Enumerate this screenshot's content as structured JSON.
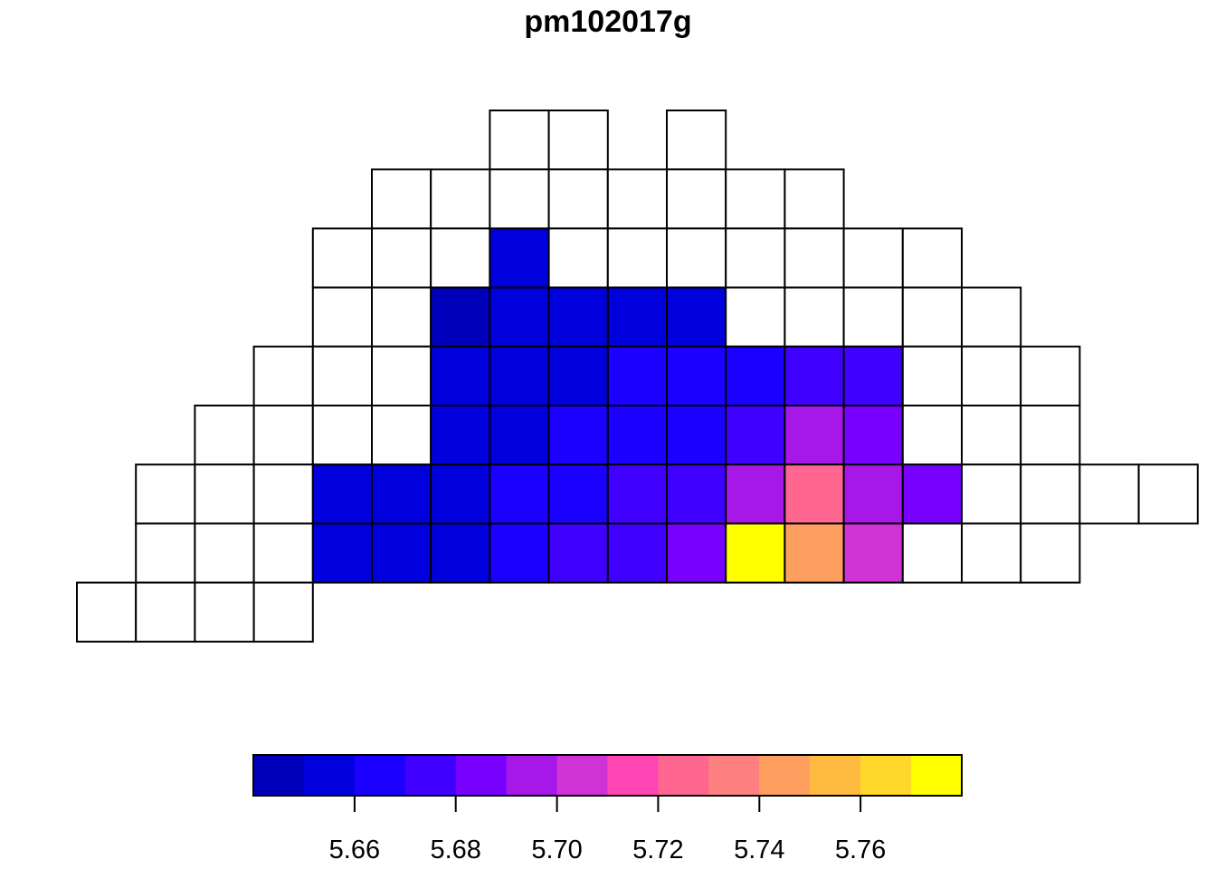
{
  "chart_data": {
    "type": "heatmap",
    "title": "pm102017g",
    "legend": {
      "placement": "bottom",
      "colors": [
        "#0000BB",
        "#0000DD",
        "#1C00FF",
        "#4000FF",
        "#7700FF",
        "#A617E8",
        "#CF33D6",
        "#FF44B4",
        "#FF6690",
        "#FF8080",
        "#FF9F5F",
        "#FFBB40",
        "#FFD82B",
        "#FFFF00"
      ],
      "range": [
        5.64,
        5.78
      ],
      "ticks": [
        5.66,
        5.68,
        5.7,
        5.72,
        5.74,
        5.76
      ],
      "tick_labels": [
        "5.66",
        "5.68",
        "5.70",
        "5.72",
        "5.74",
        "5.76"
      ]
    },
    "grid": {
      "n_cols": 18,
      "n_rows": 9,
      "rows": [
        {
          "row": 0,
          "start": 7,
          "cells": [
            null,
            null,
            "skip",
            null
          ]
        },
        {
          "row": 1,
          "start": 5,
          "cells": [
            null,
            null,
            null,
            null,
            null,
            null,
            null,
            null
          ]
        },
        {
          "row": 2,
          "start": 4,
          "cells": [
            null,
            null,
            null,
            "#0000DD",
            null,
            null,
            null,
            null,
            null,
            null,
            null
          ]
        },
        {
          "row": 3,
          "start": 4,
          "cells": [
            null,
            null,
            "#0000BB",
            "#0000DD",
            "#0000DD",
            "#0000DD",
            "#0000DD",
            null,
            null,
            null,
            null,
            null
          ]
        },
        {
          "row": 4,
          "start": 3,
          "cells": [
            null,
            null,
            null,
            "#0000DD",
            "#0000DD",
            "#0000DD",
            "#1C00FF",
            "#1C00FF",
            "#1C00FF",
            "#4000FF",
            "#4000FF",
            null,
            null,
            null
          ]
        },
        {
          "row": 5,
          "start": 2,
          "cells": [
            null,
            null,
            null,
            null,
            "#0000DD",
            "#0000DD",
            "#1C00FF",
            "#1C00FF",
            "#1C00FF",
            "#4000FF",
            "#A617E8",
            "#7700FF",
            null,
            null,
            null
          ]
        },
        {
          "row": 6,
          "start": 1,
          "cells": [
            null,
            null,
            null,
            "#0000DD",
            "#0000DD",
            "#0000DD",
            "#1C00FF",
            "#1C00FF",
            "#4000FF",
            "#4000FF",
            "#A617E8",
            "#FF6690",
            "#A617E8",
            "#7700FF",
            null,
            null,
            null,
            null
          ]
        },
        {
          "row": 7,
          "start": 1,
          "cells": [
            null,
            null,
            null,
            "#0000DD",
            "#0000DD",
            "#0000DD",
            "#1C00FF",
            "#4000FF",
            "#4000FF",
            "#7700FF",
            "#FFFF00",
            "#FF9F5F",
            "#CF33D6",
            null,
            null,
            null
          ]
        },
        {
          "row": 8,
          "start": 0,
          "cells": [
            null,
            null,
            null,
            null
          ]
        }
      ]
    }
  }
}
